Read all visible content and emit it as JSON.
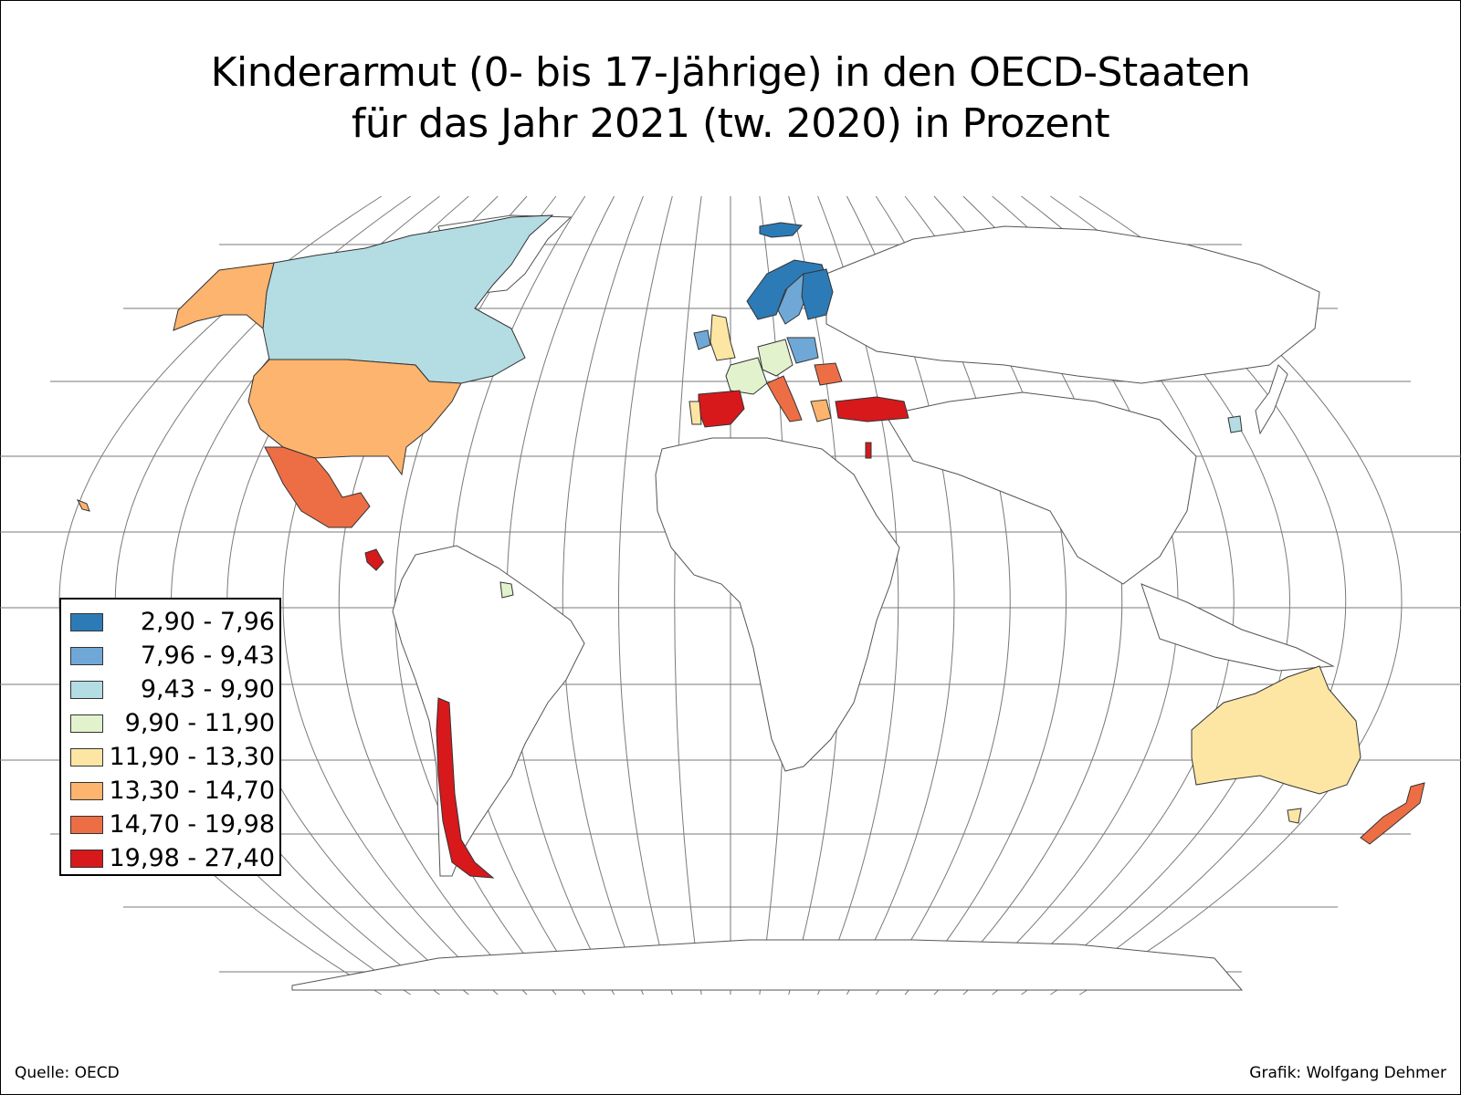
{
  "title": {
    "line1": "Kinderarmut (0- bis 17-Jährige) in den OECD-Staaten",
    "line2": "für das Jahr 2021 (tw. 2020) in Prozent"
  },
  "legend": {
    "classes": [
      {
        "label": "2,90 - 7,96",
        "color": "#2c7bb6"
      },
      {
        "label": "7,96 - 9,43",
        "color": "#6fa8d6"
      },
      {
        "label": "9,43 - 9,90",
        "color": "#b3dce3"
      },
      {
        "label": "9,90 - 11,90",
        "color": "#e2f2cd"
      },
      {
        "label": "11,90 - 13,30",
        "color": "#fde6a4"
      },
      {
        "label": "13,30 - 14,70",
        "color": "#fdb46e"
      },
      {
        "label": "14,70 - 19,98",
        "color": "#ed6e45"
      },
      {
        "label": "19,98 - 27,40",
        "color": "#d7191c"
      }
    ]
  },
  "footer": {
    "source": "Quelle: OECD",
    "credit": "Grafik: Wolfgang Dehmer"
  },
  "regions": [
    {
      "id": "canada",
      "class": 2
    },
    {
      "id": "usa",
      "class": 5
    },
    {
      "id": "alaska",
      "class": 5
    },
    {
      "id": "mexico",
      "class": 6
    },
    {
      "id": "costa-rica",
      "class": 7
    },
    {
      "id": "colombia",
      "class": 3
    },
    {
      "id": "chile",
      "class": 7
    },
    {
      "id": "iceland",
      "class": 0
    },
    {
      "id": "norway",
      "class": 0
    },
    {
      "id": "sweden",
      "class": 1
    },
    {
      "id": "finland",
      "class": 0
    },
    {
      "id": "uk",
      "class": 4
    },
    {
      "id": "ireland",
      "class": 1
    },
    {
      "id": "france",
      "class": 3
    },
    {
      "id": "germany",
      "class": 3
    },
    {
      "id": "poland",
      "class": 1
    },
    {
      "id": "spain",
      "class": 7
    },
    {
      "id": "portugal",
      "class": 4
    },
    {
      "id": "italy",
      "class": 6
    },
    {
      "id": "romania",
      "class": 6
    },
    {
      "id": "greece",
      "class": 5
    },
    {
      "id": "turkey",
      "class": 7
    },
    {
      "id": "israel",
      "class": 7
    },
    {
      "id": "south-korea",
      "class": 2
    },
    {
      "id": "australia",
      "class": 4
    },
    {
      "id": "tasmania",
      "class": 4
    },
    {
      "id": "new-zealand",
      "class": 6
    },
    {
      "id": "hawaii",
      "class": 5
    }
  ]
}
